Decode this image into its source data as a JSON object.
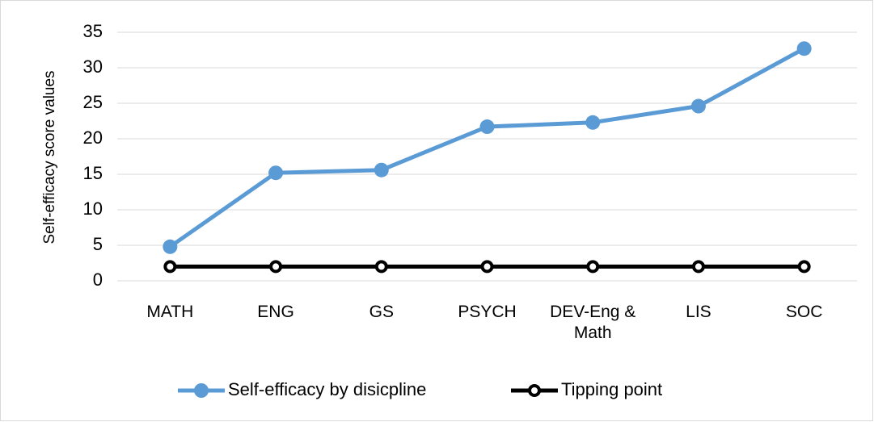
{
  "chart_data": {
    "type": "line",
    "y_label": "Self-efficacy score values",
    "categories": [
      "MATH",
      "ENG",
      "GS",
      "PSYCH",
      "DEV-Eng & Math",
      "LIS",
      "SOC"
    ],
    "series": [
      {
        "name": "Self-efficacy by disicpline",
        "color": "#5b9bd5",
        "values": [
          4.8,
          15.2,
          15.6,
          21.7,
          22.3,
          24.6,
          32.7
        ]
      },
      {
        "name": "Tipping point",
        "color": "#000000",
        "values": [
          2,
          2,
          2,
          2,
          2,
          2,
          2
        ]
      }
    ],
    "ylim": [
      0,
      35
    ],
    "yticks": [
      0,
      5,
      10,
      15,
      20,
      25,
      30,
      35
    ],
    "grid": true,
    "legend": "bottom"
  }
}
